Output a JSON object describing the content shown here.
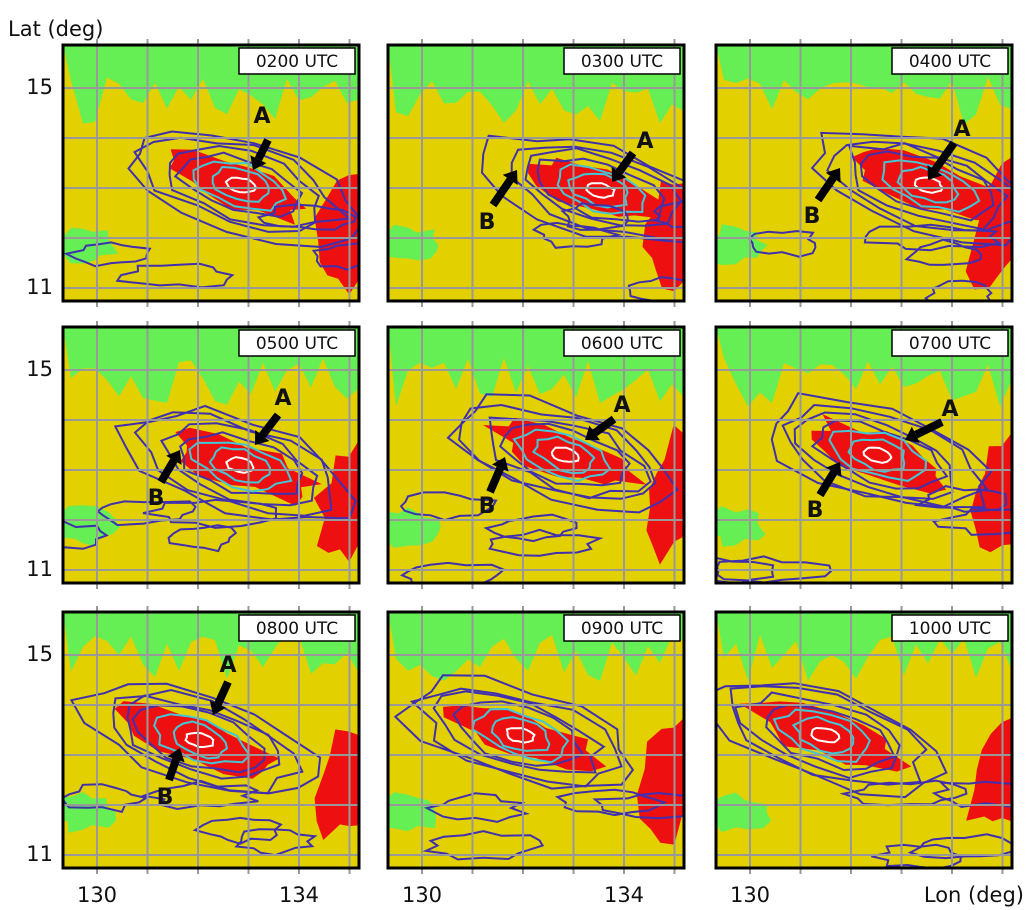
{
  "y_axis": {
    "label": "Lat (deg)",
    "ticks": [
      15,
      11
    ]
  },
  "x_axis": {
    "label": "Lon (deg)",
    "ticks": [
      130,
      134
    ]
  },
  "panels": [
    {
      "time": "0200 UTC",
      "arrows": [
        "A"
      ]
    },
    {
      "time": "0300 UTC",
      "arrows": [
        "A",
        "B"
      ]
    },
    {
      "time": "0400 UTC",
      "arrows": [
        "A",
        "B"
      ]
    },
    {
      "time": "0500 UTC",
      "arrows": [
        "A",
        "B"
      ]
    },
    {
      "time": "0600 UTC",
      "arrows": [
        "A",
        "B"
      ]
    },
    {
      "time": "0700 UTC",
      "arrows": [
        "A",
        "B"
      ]
    },
    {
      "time": "0800 UTC",
      "arrows": [
        "A",
        "B"
      ]
    },
    {
      "time": "0900 UTC",
      "arrows": []
    },
    {
      "time": "1000 UTC",
      "arrows": []
    }
  ]
}
